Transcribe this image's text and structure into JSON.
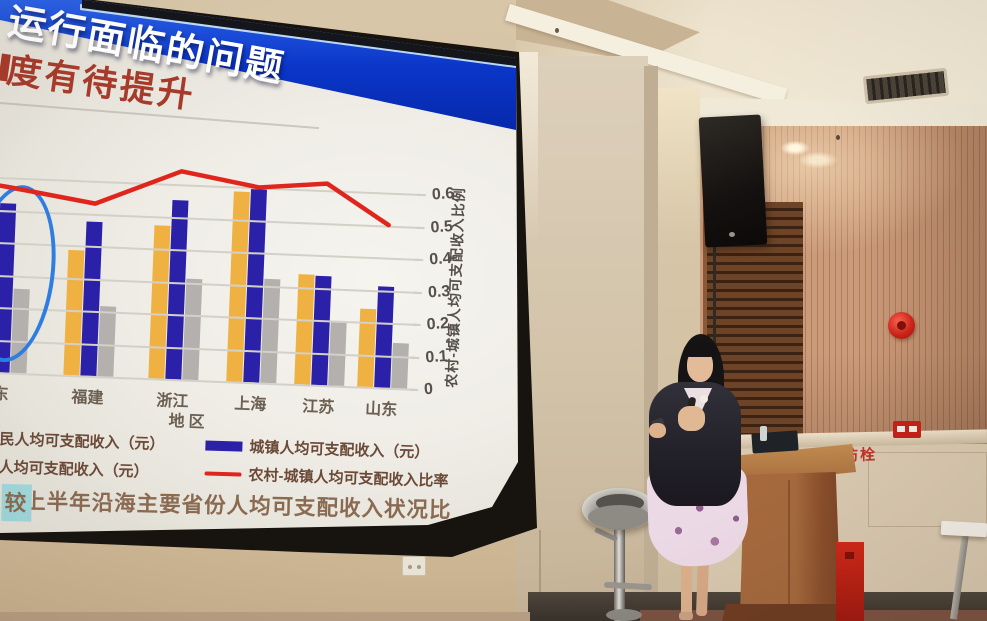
{
  "slide": {
    "banner_title": "运行面临的问题",
    "subtitle": "度有待提升",
    "caption_main": "年上半年沿海主要省份人均可支配收入状况比",
    "caption_highlight": "较",
    "legend": {
      "row1_left": "民人均可支配收入（元）",
      "row1_right": "城镇人均可支配收入（元）",
      "row2_left": "人均可支配收入（元）",
      "row2_right": "农村-城镇人均可支配收入比率"
    }
  },
  "chart_data": {
    "type": "bar+line",
    "categories": [
      "东",
      "福建",
      "浙江",
      "上海",
      "江苏",
      "山东"
    ],
    "first_category_note": "leftmost group cut off by photo edge; circled with hand-drawn blue ellipse",
    "series": [
      {
        "name": "民人均可支配收入（元）",
        "type": "bar",
        "color": "#f0b143",
        "values": [
          0.4,
          0.385,
          0.47,
          0.585,
          0.34,
          0.24
        ]
      },
      {
        "name": "城镇人均可支配收入（元）",
        "type": "bar",
        "color": "#2b21a8",
        "values": [
          0.52,
          0.475,
          0.55,
          0.6,
          0.335,
          0.31
        ]
      },
      {
        "name": "人均可支配收入（元）",
        "type": "bar",
        "color": "#b3b0ad",
        "values": [
          0.26,
          0.215,
          0.31,
          0.32,
          0.195,
          0.14
        ]
      },
      {
        "name": "农村-城镇人均可支配收入比率",
        "type": "line",
        "color": "#e0251c",
        "values": [
          0.57,
          0.53,
          0.64,
          0.6,
          0.62,
          0.5
        ]
      }
    ],
    "xlabel": "地区",
    "right_axis": {
      "label": "农村-城镇人均可支配收入比例",
      "ticks": [
        "0.6",
        "0.5",
        "0.4",
        "0.3",
        "0.2",
        "0.1",
        "0"
      ],
      "min": 0,
      "max": 0.6
    },
    "left_axis_visible": false,
    "grid": true,
    "legend_position": "below chart"
  },
  "room": {
    "wall_text": "消防栓"
  },
  "palette": {
    "banner_blue": "#0a36c8",
    "subtitle_red": "#a73b2b",
    "bar_yellow": "#f0b143",
    "bar_blue": "#2b21a8",
    "bar_gray": "#b3b0ad",
    "line_red": "#e0251c",
    "caption_highlight_cyan": "#9fd8dc",
    "annotation_blue": "#2e7de0"
  }
}
